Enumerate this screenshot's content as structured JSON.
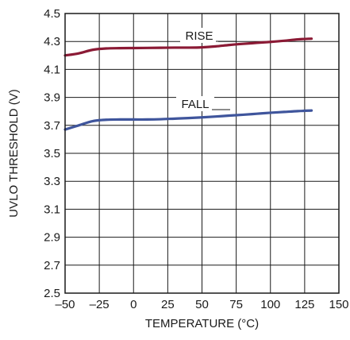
{
  "chart_data": {
    "type": "line",
    "title": "",
    "xlabel": "TEMPERATURE (°C)",
    "ylabel": "UVLO THRESHOLD (V)",
    "xlim": [
      -50,
      150
    ],
    "ylim": [
      2.5,
      4.5
    ],
    "xticks": [
      -50,
      -25,
      0,
      25,
      50,
      75,
      100,
      125,
      150
    ],
    "yticks": [
      2.5,
      2.7,
      2.9,
      3.1,
      3.3,
      3.5,
      3.7,
      3.9,
      4.1,
      4.3,
      4.5
    ],
    "xtick_labels": [
      "–50",
      "–25",
      "0",
      "25",
      "50",
      "75",
      "100",
      "125",
      "150"
    ],
    "ytick_labels": [
      "2.5",
      "2.7",
      "2.9",
      "3.1",
      "3.3",
      "3.5",
      "3.7",
      "3.9",
      "4.1",
      "4.3",
      "4.5"
    ],
    "grid": true,
    "legend": "none",
    "series": [
      {
        "name": "RISE",
        "color": "#8b1a35",
        "x": [
          -50,
          -40,
          -30,
          -20,
          -10,
          0,
          10,
          20,
          30,
          40,
          50,
          60,
          70,
          80,
          90,
          100,
          110,
          120,
          130
        ],
        "y": [
          4.2,
          4.215,
          4.24,
          4.25,
          4.252,
          4.253,
          4.254,
          4.255,
          4.256,
          4.256,
          4.258,
          4.265,
          4.275,
          4.283,
          4.29,
          4.297,
          4.305,
          4.315,
          4.32
        ]
      },
      {
        "name": "FALL",
        "color": "#3f559c",
        "x": [
          -50,
          -40,
          -30,
          -20,
          -10,
          0,
          10,
          20,
          30,
          40,
          50,
          60,
          70,
          80,
          90,
          100,
          110,
          120,
          130
        ],
        "y": [
          3.67,
          3.7,
          3.73,
          3.74,
          3.742,
          3.742,
          3.742,
          3.744,
          3.748,
          3.752,
          3.757,
          3.763,
          3.77,
          3.776,
          3.783,
          3.79,
          3.796,
          3.802,
          3.806
        ]
      }
    ]
  }
}
